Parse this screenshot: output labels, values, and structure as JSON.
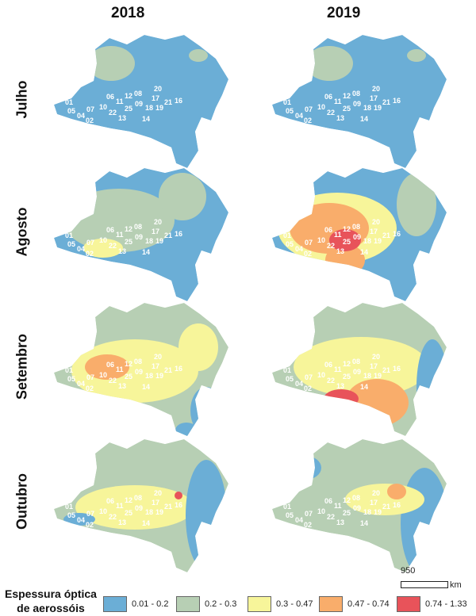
{
  "columns": [
    "2018",
    "2019"
  ],
  "rows": [
    "Julho",
    "Agosto",
    "Setembro",
    "Outubro"
  ],
  "region_labels": [
    "01",
    "05",
    "04",
    "02",
    "07",
    "10",
    "06",
    "11",
    "12",
    "08",
    "22",
    "25",
    "09",
    "13",
    "20",
    "17",
    "18",
    "19",
    "21",
    "16",
    "14"
  ],
  "scale": {
    "value": "950",
    "unit": "km"
  },
  "legend": {
    "title_line1": "Espessura óptica",
    "title_line2": "de aerossóis",
    "classes": [
      {
        "label": "0.01 - 0.2",
        "color": "#6baed6"
      },
      {
        "label": "0.2 - 0.3",
        "color": "#b7cfb4"
      },
      {
        "label": "0.3 - 0.47",
        "color": "#f7f59a"
      },
      {
        "label": "0.47 - 0.74",
        "color": "#f9ad6b"
      },
      {
        "label": "0.74 - 1.33",
        "color": "#e8535a"
      }
    ]
  }
}
